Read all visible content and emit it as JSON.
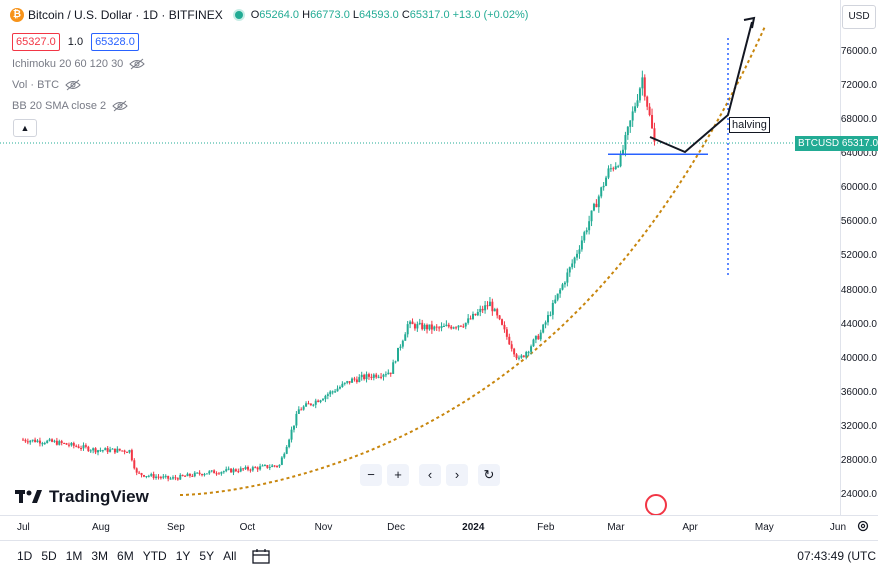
{
  "symbol": {
    "title": "Bitcoin / U.S. Dollar · 1D · BITFINEX",
    "logo_glyph": "₿"
  },
  "ohlc": {
    "o_label": "O",
    "o": "65264.0",
    "h_label": "H",
    "h": "66773.0",
    "l_label": "L",
    "l": "64593.0",
    "c_label": "C",
    "c": "65317.0",
    "change": "+13.0 (+0.02%)"
  },
  "quote": {
    "bid": "65327.0",
    "spread": "1.0",
    "ask": "65328.0"
  },
  "indicators": [
    {
      "label": "Ichimoku 20 60 120 30"
    },
    {
      "label": "Vol · BTC"
    },
    {
      "label": "BB 20 SMA close 2"
    }
  ],
  "price_axis": {
    "currency": "USD",
    "ticks": [
      "76000.0",
      "72000.0",
      "68000.0",
      "64000.0",
      "60000.0",
      "56000.0",
      "52000.0",
      "48000.0",
      "44000.0",
      "40000.0",
      "36000.0",
      "32000.0",
      "28000.0",
      "24000.0"
    ],
    "last_price_label": "BTCUSD",
    "last_price": "65317.0"
  },
  "time_axis": {
    "ticks": [
      "Jul",
      "Aug",
      "Sep",
      "Oct",
      "Nov",
      "Dec",
      "2024",
      "Feb",
      "Mar",
      "Apr",
      "May",
      "Jun"
    ]
  },
  "annotation": {
    "halving": "halving"
  },
  "watermark": "TradingView",
  "zoom_controls": {
    "zoom_out": "−",
    "zoom_in": "+",
    "back": "‹",
    "forward": "›",
    "reset": "↻"
  },
  "ranges": [
    "1D",
    "5D",
    "1M",
    "3M",
    "6M",
    "YTD",
    "1Y",
    "5Y",
    "All"
  ],
  "clock": "07:43:49 (UTC",
  "colors": {
    "up": "#22ab94",
    "down": "#f23645",
    "curve": "#c8860d",
    "support": "#2962ff",
    "halving": "#2962ff"
  },
  "chart_data": {
    "type": "candlestick",
    "symbol": "BTCUSD",
    "interval": "1D",
    "y_range": [
      22500,
      80000
    ],
    "x_range": [
      "2023-06-25",
      "2024-06-05"
    ],
    "series": [
      {
        "x": "2023-07-01",
        "close": 30500
      },
      {
        "x": "2023-07-15",
        "close": 30200
      },
      {
        "x": "2023-08-01",
        "close": 29300
      },
      {
        "x": "2023-08-15",
        "close": 29200
      },
      {
        "x": "2023-08-18",
        "close": 26500
      },
      {
        "x": "2023-09-01",
        "close": 25900
      },
      {
        "x": "2023-09-15",
        "close": 26600
      },
      {
        "x": "2023-10-01",
        "close": 27000
      },
      {
        "x": "2023-10-16",
        "close": 27500
      },
      {
        "x": "2023-10-24",
        "close": 34000
      },
      {
        "x": "2023-11-01",
        "close": 35200
      },
      {
        "x": "2023-11-15",
        "close": 37500
      },
      {
        "x": "2023-12-01",
        "close": 38500
      },
      {
        "x": "2023-12-08",
        "close": 44000
      },
      {
        "x": "2023-12-20",
        "close": 43500
      },
      {
        "x": "2024-01-01",
        "close": 44200
      },
      {
        "x": "2024-01-11",
        "close": 46500
      },
      {
        "x": "2024-01-23",
        "close": 39800
      },
      {
        "x": "2024-02-01",
        "close": 43000
      },
      {
        "x": "2024-02-15",
        "close": 51800
      },
      {
        "x": "2024-02-29",
        "close": 62000
      },
      {
        "x": "2024-03-05",
        "close": 63500
      },
      {
        "x": "2024-03-14",
        "close": 73000
      },
      {
        "x": "2024-03-19",
        "close": 65317
      }
    ],
    "drawings": {
      "support_level": 64000,
      "halving_date": "2024-04-20",
      "projection": [
        {
          "x": "2024-03-19",
          "y": 65500
        },
        {
          "x": "2024-04-01",
          "y": 64000
        },
        {
          "x": "2024-04-20",
          "y": 69000
        },
        {
          "x": "2024-05-01",
          "y": 78000
        }
      ],
      "curve_annotation": "exponential trend curve"
    }
  }
}
